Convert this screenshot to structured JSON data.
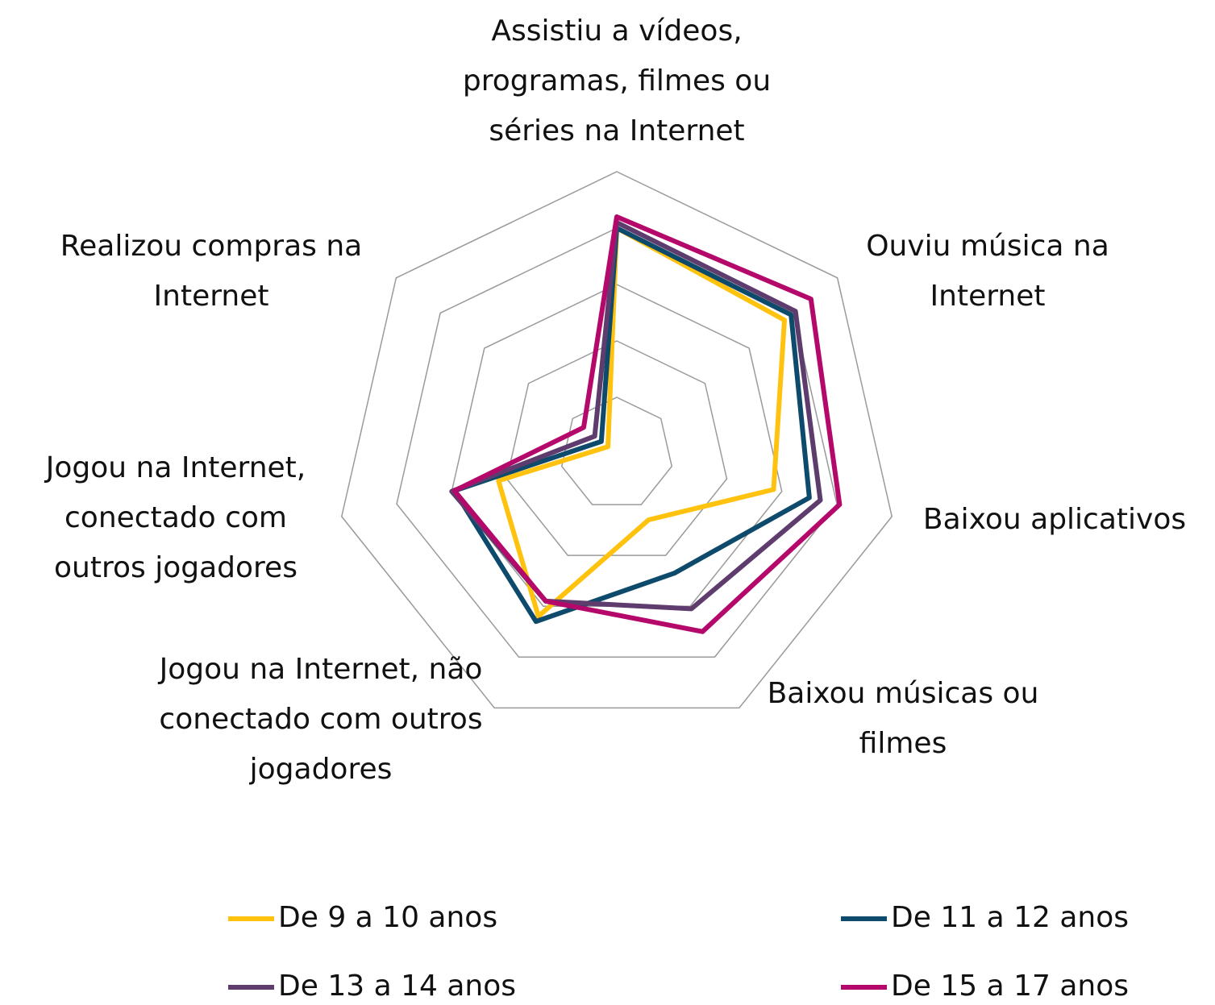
{
  "chart_data": {
    "type": "radar",
    "categories": [
      "Assistiu a vídeos, programas, filmes ou séries na Internet",
      "Ouviu música na Internet",
      "Baixou aplicativos",
      "Baixou músicas ou filmes",
      "Jogou na Internet, não conectado com outros jogadores",
      "Jogou na Internet, conectado com outros jogadores",
      "Realizou compras na Internet"
    ],
    "series": [
      {
        "name": "De 9 a 10 anos",
        "color": "#ffc20e",
        "values": [
          80,
          76,
          57,
          26,
          64,
          43,
          4
        ]
      },
      {
        "name": "De 11 a 12 anos",
        "color": "#0d4a6b",
        "values": [
          80,
          79,
          70,
          47,
          66,
          59,
          7
        ]
      },
      {
        "name": "De 13 a 14 anos",
        "color": "#5e3c6e",
        "values": [
          82,
          81,
          74,
          61,
          58,
          60,
          10
        ]
      },
      {
        "name": "De 15 a 17 anos",
        "color": "#b5086b",
        "values": [
          84,
          88,
          81,
          70,
          58,
          59,
          15
        ]
      }
    ],
    "ylim": [
      0,
      100
    ],
    "yticks": [
      20,
      40,
      60,
      80,
      100
    ],
    "grid": true,
    "legend": "bottom"
  }
}
